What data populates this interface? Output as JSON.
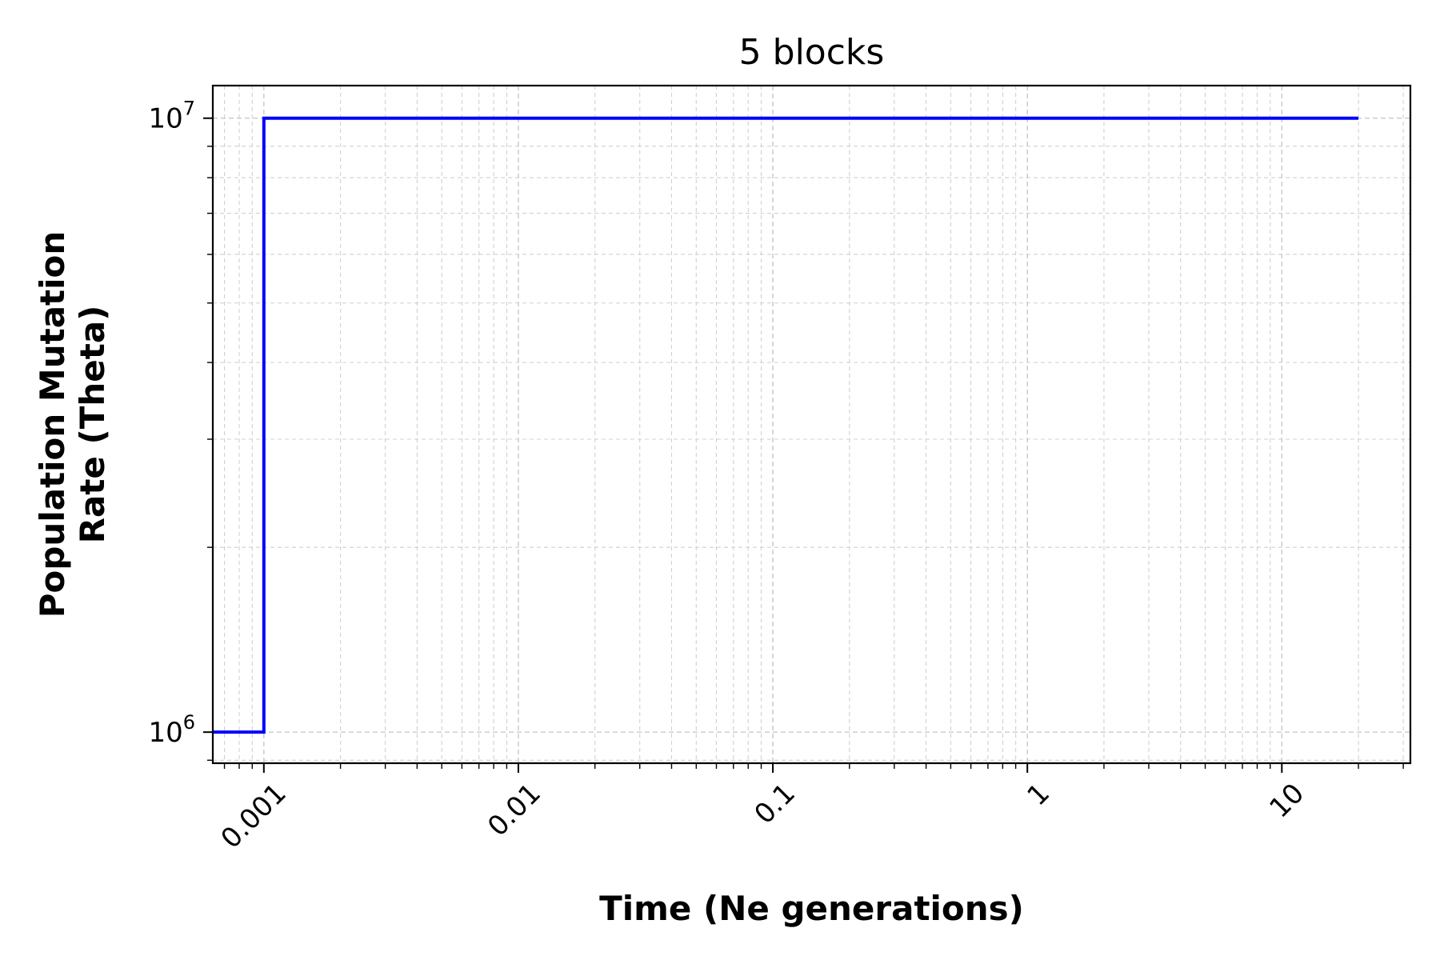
{
  "chart_data": {
    "type": "line",
    "title": "5 blocks",
    "xlabel": "Time (Ne generations)",
    "ylabel_lines": [
      "Population Mutation",
      "Rate (Theta)"
    ],
    "xscale": "log",
    "yscale": "log",
    "xlim": [
      0.00063,
      32
    ],
    "ylim": [
      890000,
      11300000
    ],
    "x_ticks": [
      {
        "value": 0.001,
        "label": "0.001"
      },
      {
        "value": 0.01,
        "label": "0.01"
      },
      {
        "value": 0.1,
        "label": "0.1"
      },
      {
        "value": 1,
        "label": "1"
      },
      {
        "value": 10,
        "label": "10"
      }
    ],
    "y_ticks": [
      {
        "value": 1000000,
        "base": "10",
        "exp": "6"
      },
      {
        "value": 10000000,
        "base": "10",
        "exp": "7"
      }
    ],
    "grid": true,
    "series": [
      {
        "color": "#0000ff",
        "drawstyle": "steps-post",
        "x": [
          0.00063,
          0.001,
          20
        ],
        "y": [
          1000000,
          10000000,
          10000000
        ]
      }
    ]
  }
}
